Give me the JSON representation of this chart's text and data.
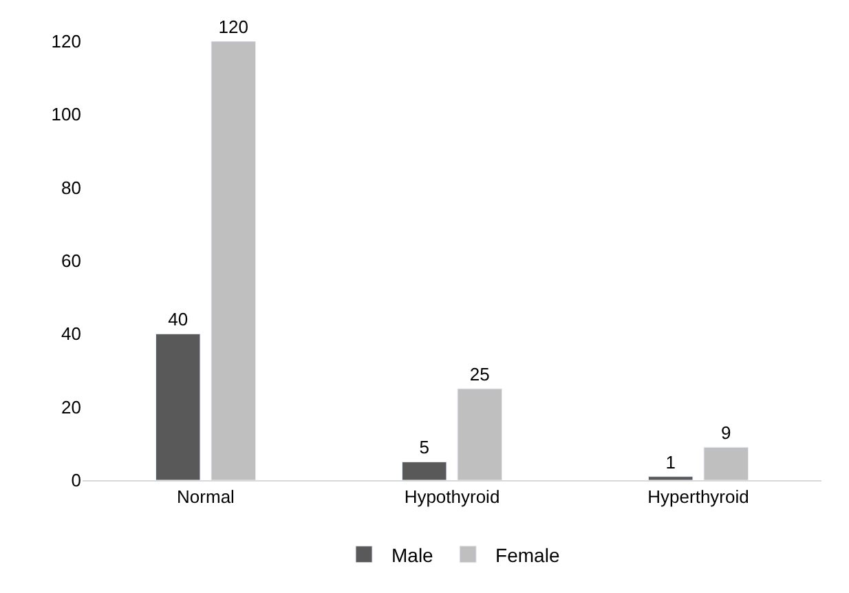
{
  "chart_data": {
    "type": "bar",
    "categories": [
      "Normal",
      "Hypothyroid",
      "Hyperthyroid"
    ],
    "series": [
      {
        "name": "Male",
        "color": "#595959",
        "values": [
          40,
          5,
          1
        ]
      },
      {
        "name": "Female",
        "color": "#bfbfbf",
        "values": [
          120,
          25,
          9
        ]
      }
    ],
    "ylim": [
      0,
      120
    ],
    "yticks": [
      0,
      20,
      40,
      60,
      80,
      100,
      120
    ],
    "grid": false,
    "legend": "bottom",
    "data_labels": true
  }
}
